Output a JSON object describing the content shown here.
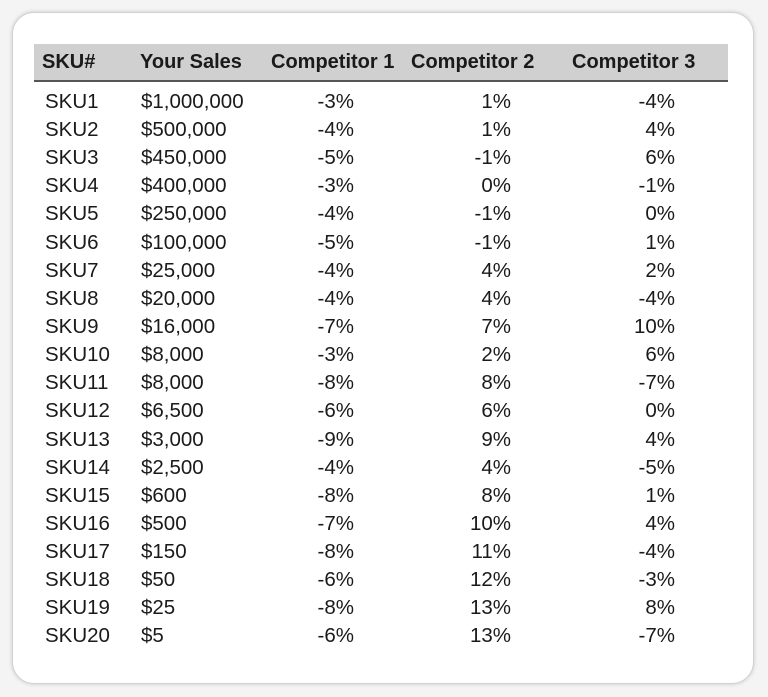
{
  "table": {
    "headers": [
      "SKU#",
      "Your Sales",
      "Competitor 1",
      "Competitor 2",
      "Competitor 3"
    ],
    "rows": [
      [
        "SKU1",
        "$1,000,000",
        "-3%",
        "1%",
        "-4%"
      ],
      [
        "SKU2",
        "$500,000",
        "-4%",
        "1%",
        "4%"
      ],
      [
        "SKU3",
        "$450,000",
        "-5%",
        "-1%",
        "6%"
      ],
      [
        "SKU4",
        "$400,000",
        "-3%",
        "0%",
        "-1%"
      ],
      [
        "SKU5",
        "$250,000",
        "-4%",
        "-1%",
        "0%"
      ],
      [
        "SKU6",
        "$100,000",
        "-5%",
        "-1%",
        "1%"
      ],
      [
        "SKU7",
        "$25,000",
        "-4%",
        "4%",
        "2%"
      ],
      [
        "SKU8",
        "$20,000",
        "-4%",
        "4%",
        "-4%"
      ],
      [
        "SKU9",
        "$16,000",
        "-7%",
        "7%",
        "10%"
      ],
      [
        "SKU10",
        "$8,000",
        "-3%",
        "2%",
        "6%"
      ],
      [
        "SKU11",
        "$8,000",
        "-8%",
        "8%",
        "-7%"
      ],
      [
        "SKU12",
        "$6,500",
        "-6%",
        "6%",
        "0%"
      ],
      [
        "SKU13",
        "$3,000",
        "-9%",
        "9%",
        "4%"
      ],
      [
        "SKU14",
        "$2,500",
        "-4%",
        "4%",
        "-5%"
      ],
      [
        "SKU15",
        "$600",
        "-8%",
        "8%",
        "1%"
      ],
      [
        "SKU16",
        "$500",
        "-7%",
        "10%",
        "4%"
      ],
      [
        "SKU17",
        "$150",
        "-8%",
        "11%",
        "-4%"
      ],
      [
        "SKU18",
        "$50",
        "-6%",
        "12%",
        "-3%"
      ],
      [
        "SKU19",
        "$25",
        "-8%",
        "13%",
        "8%"
      ],
      [
        "SKU20",
        "$5",
        "-6%",
        "13%",
        "-7%"
      ]
    ]
  },
  "colors": {
    "header_background": "#d0d0d0",
    "header_rule": "#555555",
    "text": "#1a1a1a"
  }
}
